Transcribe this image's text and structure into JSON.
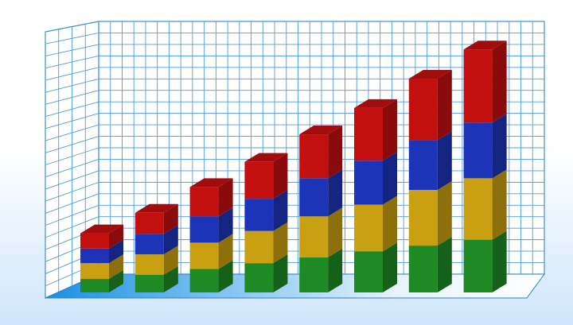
{
  "chart_data": {
    "type": "bar",
    "stacked": true,
    "three_d": true,
    "title": "",
    "xlabel": "",
    "ylabel": "",
    "categories": [
      "",
      "",
      "",
      "",
      "",
      "",
      "",
      ""
    ],
    "series": [
      {
        "color": "#1f8a23",
        "values": [
          2.3,
          3.0,
          4.0,
          5.0,
          6.0,
          7.0,
          8.0,
          9.0
        ]
      },
      {
        "color": "#c9a011",
        "values": [
          2.7,
          3.5,
          4.5,
          5.5,
          7.0,
          8.0,
          9.5,
          10.5
        ]
      },
      {
        "color": "#1d33b8",
        "values": [
          2.5,
          3.5,
          4.5,
          5.5,
          6.5,
          7.5,
          8.5,
          9.5
        ]
      },
      {
        "color": "#c40f0f",
        "values": [
          2.6,
          3.6,
          5.0,
          6.3,
          7.5,
          9.0,
          10.5,
          12.5
        ]
      }
    ],
    "ylim": [
      0,
      41
    ],
    "grid": true,
    "legend": "none"
  }
}
